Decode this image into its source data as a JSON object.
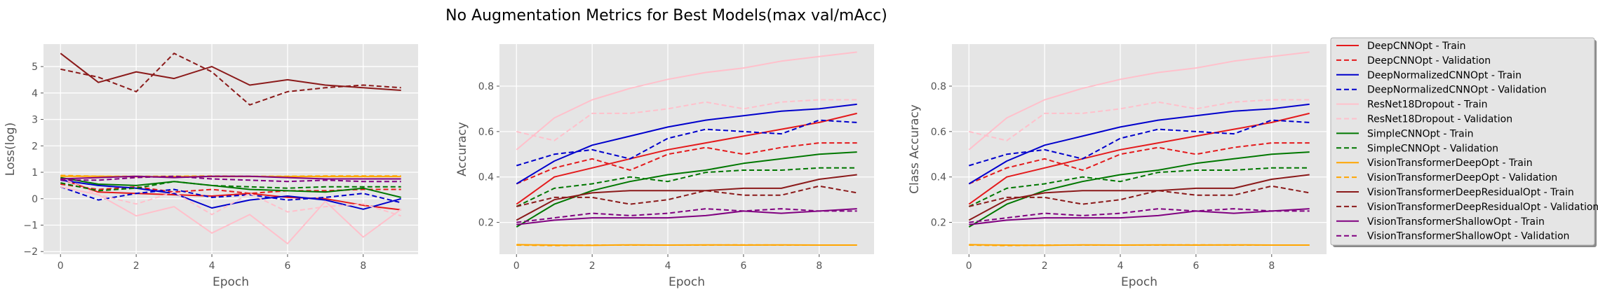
{
  "figure": {
    "title": "No Augmentation Metrics for Best Models(max val/mAcc)"
  },
  "legend": {
    "placement": "right"
  },
  "colors": {
    "DeepCNNOpt": "#e41a1c",
    "DeepNormalizedCNNOpt": "#0000cc",
    "ResNet18Dropout": "#ffc0cb",
    "SimpleCNNOpt": "#007700",
    "VisionTransformerDeepOpt": "#ffa500",
    "VisionTransformerDeepResidualOpt": "#8b1a1a",
    "VisionTransformerShallowOpt": "#800080"
  },
  "chart_data": [
    {
      "type": "line",
      "title": "",
      "xlabel": "Epoch",
      "ylabel": "Loss(log)",
      "xlim": [
        -0.45,
        9.45
      ],
      "ylim": [
        -2.1,
        5.85
      ],
      "xticks": [
        0,
        2,
        4,
        6,
        8
      ],
      "yticks": [
        -2,
        -1,
        0,
        1,
        2,
        3,
        4,
        5
      ],
      "grid": true,
      "x": [
        0,
        1,
        2,
        3,
        4,
        5,
        6,
        7,
        8,
        9
      ],
      "series": [
        {
          "name": "DeepCNNOpt - Train",
          "model": "DeepCNNOpt",
          "style": "solid",
          "values": [
            0.75,
            0.25,
            0.2,
            0.15,
            0.1,
            0.2,
            0.05,
            0.0,
            -0.25,
            -0.42
          ]
        },
        {
          "name": "DeepCNNOpt - Validation",
          "model": "DeepCNNOpt",
          "style": "dashed",
          "values": [
            0.55,
            0.35,
            0.45,
            0.25,
            0.35,
            0.2,
            0.3,
            0.3,
            0.35,
            0.35
          ]
        },
        {
          "name": "DeepNormalizedCNNOpt - Train",
          "model": "DeepNormalizedCNNOpt",
          "style": "solid",
          "values": [
            0.7,
            0.5,
            0.4,
            0.2,
            -0.35,
            -0.05,
            0.1,
            -0.05,
            -0.4,
            0.0
          ]
        },
        {
          "name": "DeepNormalizedCNNOpt - Validation",
          "model": "DeepNormalizedCNNOpt",
          "style": "dashed",
          "values": [
            0.45,
            -0.05,
            0.2,
            0.35,
            0.05,
            0.15,
            -0.05,
            0.05,
            0.2,
            -0.15
          ]
        },
        {
          "name": "ResNet18Dropout - Train",
          "model": "ResNet18Dropout",
          "style": "solid",
          "values": [
            0.45,
            0.15,
            -0.65,
            -0.3,
            -1.3,
            -0.6,
            -1.7,
            -0.1,
            -1.45,
            -0.4
          ]
        },
        {
          "name": "ResNet18Dropout - Validation",
          "model": "ResNet18Dropout",
          "style": "dashed",
          "values": [
            0.8,
            0.15,
            -0.2,
            0.25,
            -0.6,
            0.2,
            -0.5,
            -0.3,
            -0.2,
            -0.65
          ]
        },
        {
          "name": "SimpleCNNOpt - Train",
          "model": "SimpleCNNOpt",
          "style": "solid",
          "values": [
            0.8,
            0.55,
            0.5,
            0.65,
            0.5,
            0.35,
            0.3,
            0.25,
            0.4,
            0.05
          ]
        },
        {
          "name": "SimpleCNNOpt - Validation",
          "model": "SimpleCNNOpt",
          "style": "dashed",
          "values": [
            0.6,
            0.3,
            0.4,
            0.65,
            0.5,
            0.45,
            0.4,
            0.45,
            0.45,
            0.45
          ]
        },
        {
          "name": "VisionTransformerDeepOpt - Train",
          "model": "VisionTransformerDeepOpt",
          "style": "solid",
          "values": [
            0.85,
            0.85,
            0.83,
            0.84,
            0.84,
            0.84,
            0.84,
            0.84,
            0.84,
            0.84
          ]
        },
        {
          "name": "VisionTransformerDeepOpt - Validation",
          "model": "VisionTransformerDeepOpt",
          "style": "dashed",
          "values": [
            0.88,
            0.85,
            0.85,
            0.85,
            0.86,
            0.85,
            0.85,
            0.86,
            0.86,
            0.86
          ]
        },
        {
          "name": "VisionTransformerDeepResidualOpt - Train",
          "model": "VisionTransformerDeepResidualOpt",
          "style": "solid",
          "values": [
            5.5,
            4.4,
            4.8,
            4.55,
            5.0,
            4.3,
            4.5,
            4.3,
            4.2,
            4.1
          ]
        },
        {
          "name": "VisionTransformerDeepResidualOpt - Validation",
          "model": "VisionTransformerDeepResidualOpt",
          "style": "dashed",
          "values": [
            4.9,
            4.6,
            4.05,
            5.5,
            4.8,
            3.55,
            4.05,
            4.2,
            4.3,
            4.2
          ]
        },
        {
          "name": "VisionTransformerShallowOpt - Train",
          "model": "VisionTransformerShallowOpt",
          "style": "solid",
          "values": [
            0.75,
            0.8,
            0.85,
            0.8,
            0.85,
            0.85,
            0.8,
            0.75,
            0.75,
            0.75
          ]
        },
        {
          "name": "VisionTransformerShallowOpt - Validation",
          "model": "VisionTransformerShallowOpt",
          "style": "dashed",
          "values": [
            0.7,
            0.7,
            0.8,
            0.85,
            0.75,
            0.7,
            0.65,
            0.7,
            0.65,
            0.65
          ]
        }
      ]
    },
    {
      "type": "line",
      "title": "",
      "xlabel": "Epoch",
      "ylabel": "Accuracy",
      "xlim": [
        -0.45,
        9.45
      ],
      "ylim": [
        0.06,
        0.985
      ],
      "xticks": [
        0,
        2,
        4,
        6,
        8
      ],
      "yticks": [
        0.2,
        0.4,
        0.6,
        0.8
      ],
      "grid": true,
      "x": [
        0,
        1,
        2,
        3,
        4,
        5,
        6,
        7,
        8,
        9
      ],
      "series": [
        {
          "name": "DeepCNNOpt - Train",
          "model": "DeepCNNOpt",
          "style": "solid",
          "values": [
            0.28,
            0.4,
            0.44,
            0.48,
            0.52,
            0.55,
            0.58,
            0.61,
            0.64,
            0.68
          ]
        },
        {
          "name": "DeepCNNOpt - Validation",
          "model": "DeepCNNOpt",
          "style": "dashed",
          "values": [
            0.37,
            0.44,
            0.48,
            0.43,
            0.5,
            0.53,
            0.5,
            0.53,
            0.55,
            0.55
          ]
        },
        {
          "name": "DeepNormalizedCNNOpt - Train",
          "model": "DeepNormalizedCNNOpt",
          "style": "solid",
          "values": [
            0.37,
            0.47,
            0.54,
            0.58,
            0.62,
            0.65,
            0.67,
            0.69,
            0.7,
            0.72
          ]
        },
        {
          "name": "DeepNormalizedCNNOpt - Validation",
          "model": "DeepNormalizedCNNOpt",
          "style": "dashed",
          "values": [
            0.45,
            0.5,
            0.52,
            0.48,
            0.57,
            0.61,
            0.6,
            0.59,
            0.65,
            0.64
          ]
        },
        {
          "name": "ResNet18Dropout - Train",
          "model": "ResNet18Dropout",
          "style": "solid",
          "values": [
            0.52,
            0.66,
            0.74,
            0.79,
            0.83,
            0.86,
            0.88,
            0.91,
            0.93,
            0.95
          ]
        },
        {
          "name": "ResNet18Dropout - Validation",
          "model": "ResNet18Dropout",
          "style": "dashed",
          "values": [
            0.6,
            0.56,
            0.68,
            0.68,
            0.7,
            0.73,
            0.7,
            0.73,
            0.74,
            0.74
          ]
        },
        {
          "name": "SimpleCNNOpt - Train",
          "model": "SimpleCNNOpt",
          "style": "solid",
          "values": [
            0.18,
            0.28,
            0.34,
            0.38,
            0.41,
            0.43,
            0.46,
            0.48,
            0.5,
            0.51
          ]
        },
        {
          "name": "SimpleCNNOpt - Validation",
          "model": "SimpleCNNOpt",
          "style": "dashed",
          "values": [
            0.27,
            0.35,
            0.37,
            0.4,
            0.38,
            0.42,
            0.43,
            0.43,
            0.44,
            0.44
          ]
        },
        {
          "name": "VisionTransformerDeepOpt - Train",
          "model": "VisionTransformerDeepOpt",
          "style": "solid",
          "values": [
            0.102,
            0.1,
            0.099,
            0.101,
            0.1,
            0.101,
            0.1,
            0.101,
            0.1,
            0.1
          ]
        },
        {
          "name": "VisionTransformerDeepOpt - Validation",
          "model": "VisionTransformerDeepOpt",
          "style": "dashed",
          "values": [
            0.1,
            0.098,
            0.1,
            0.1,
            0.1,
            0.1,
            0.101,
            0.1,
            0.1,
            0.1
          ]
        },
        {
          "name": "VisionTransformerDeepResidualOpt - Train",
          "model": "VisionTransformerDeepResidualOpt",
          "style": "solid",
          "values": [
            0.21,
            0.3,
            0.33,
            0.34,
            0.34,
            0.34,
            0.35,
            0.35,
            0.39,
            0.41
          ]
        },
        {
          "name": "VisionTransformerDeepResidualOpt - Validation",
          "model": "VisionTransformerDeepResidualOpt",
          "style": "dashed",
          "values": [
            0.27,
            0.31,
            0.31,
            0.28,
            0.3,
            0.34,
            0.32,
            0.32,
            0.36,
            0.33
          ]
        },
        {
          "name": "VisionTransformerShallowOpt - Train",
          "model": "VisionTransformerShallowOpt",
          "style": "solid",
          "values": [
            0.19,
            0.21,
            0.22,
            0.22,
            0.22,
            0.23,
            0.25,
            0.24,
            0.25,
            0.26
          ]
        },
        {
          "name": "VisionTransformerShallowOpt - Validation",
          "model": "VisionTransformerShallowOpt",
          "style": "dashed",
          "values": [
            0.2,
            0.22,
            0.24,
            0.23,
            0.24,
            0.26,
            0.25,
            0.26,
            0.25,
            0.25
          ]
        }
      ]
    },
    {
      "type": "line",
      "title": "",
      "xlabel": "Epoch",
      "ylabel": "Class Accuracy",
      "xlim": [
        -0.45,
        9.45
      ],
      "ylim": [
        0.06,
        0.985
      ],
      "xticks": [
        0,
        2,
        4,
        6,
        8
      ],
      "yticks": [
        0.2,
        0.4,
        0.6,
        0.8
      ],
      "grid": true,
      "x": [
        0,
        1,
        2,
        3,
        4,
        5,
        6,
        7,
        8,
        9
      ],
      "series": [
        {
          "name": "DeepCNNOpt - Train",
          "model": "DeepCNNOpt",
          "style": "solid",
          "values": [
            0.28,
            0.4,
            0.44,
            0.48,
            0.52,
            0.55,
            0.58,
            0.61,
            0.64,
            0.68
          ]
        },
        {
          "name": "DeepCNNOpt - Validation",
          "model": "DeepCNNOpt",
          "style": "dashed",
          "values": [
            0.37,
            0.44,
            0.48,
            0.43,
            0.5,
            0.53,
            0.5,
            0.53,
            0.55,
            0.55
          ]
        },
        {
          "name": "DeepNormalizedCNNOpt - Train",
          "model": "DeepNormalizedCNNOpt",
          "style": "solid",
          "values": [
            0.37,
            0.47,
            0.54,
            0.58,
            0.62,
            0.65,
            0.67,
            0.69,
            0.7,
            0.72
          ]
        },
        {
          "name": "DeepNormalizedCNNOpt - Validation",
          "model": "DeepNormalizedCNNOpt",
          "style": "dashed",
          "values": [
            0.45,
            0.5,
            0.52,
            0.48,
            0.57,
            0.61,
            0.6,
            0.59,
            0.65,
            0.64
          ]
        },
        {
          "name": "ResNet18Dropout - Train",
          "model": "ResNet18Dropout",
          "style": "solid",
          "values": [
            0.52,
            0.66,
            0.74,
            0.79,
            0.83,
            0.86,
            0.88,
            0.91,
            0.93,
            0.95
          ]
        },
        {
          "name": "ResNet18Dropout - Validation",
          "model": "ResNet18Dropout",
          "style": "dashed",
          "values": [
            0.6,
            0.56,
            0.68,
            0.68,
            0.7,
            0.73,
            0.7,
            0.73,
            0.74,
            0.74
          ]
        },
        {
          "name": "SimpleCNNOpt - Train",
          "model": "SimpleCNNOpt",
          "style": "solid",
          "values": [
            0.18,
            0.28,
            0.34,
            0.38,
            0.41,
            0.43,
            0.46,
            0.48,
            0.5,
            0.51
          ]
        },
        {
          "name": "SimpleCNNOpt - Validation",
          "model": "SimpleCNNOpt",
          "style": "dashed",
          "values": [
            0.27,
            0.35,
            0.37,
            0.4,
            0.38,
            0.42,
            0.43,
            0.43,
            0.44,
            0.44
          ]
        },
        {
          "name": "VisionTransformerDeepOpt - Train",
          "model": "VisionTransformerDeepOpt",
          "style": "solid",
          "values": [
            0.102,
            0.1,
            0.099,
            0.101,
            0.1,
            0.101,
            0.1,
            0.101,
            0.1,
            0.1
          ]
        },
        {
          "name": "VisionTransformerDeepOpt - Validation",
          "model": "VisionTransformerDeepOpt",
          "style": "dashed",
          "values": [
            0.1,
            0.098,
            0.1,
            0.1,
            0.1,
            0.1,
            0.101,
            0.1,
            0.1,
            0.1
          ]
        },
        {
          "name": "VisionTransformerDeepResidualOpt - Train",
          "model": "VisionTransformerDeepResidualOpt",
          "style": "solid",
          "values": [
            0.21,
            0.3,
            0.33,
            0.34,
            0.34,
            0.34,
            0.35,
            0.35,
            0.39,
            0.41
          ]
        },
        {
          "name": "VisionTransformerDeepResidualOpt - Validation",
          "model": "VisionTransformerDeepResidualOpt",
          "style": "dashed",
          "values": [
            0.27,
            0.31,
            0.31,
            0.28,
            0.3,
            0.34,
            0.32,
            0.32,
            0.36,
            0.33
          ]
        },
        {
          "name": "VisionTransformerShallowOpt - Train",
          "model": "VisionTransformerShallowOpt",
          "style": "solid",
          "values": [
            0.19,
            0.21,
            0.22,
            0.22,
            0.22,
            0.23,
            0.25,
            0.24,
            0.25,
            0.26
          ]
        },
        {
          "name": "VisionTransformerShallowOpt - Validation",
          "model": "VisionTransformerShallowOpt",
          "style": "dashed",
          "values": [
            0.2,
            0.22,
            0.24,
            0.23,
            0.24,
            0.26,
            0.25,
            0.26,
            0.25,
            0.25
          ]
        }
      ]
    }
  ]
}
